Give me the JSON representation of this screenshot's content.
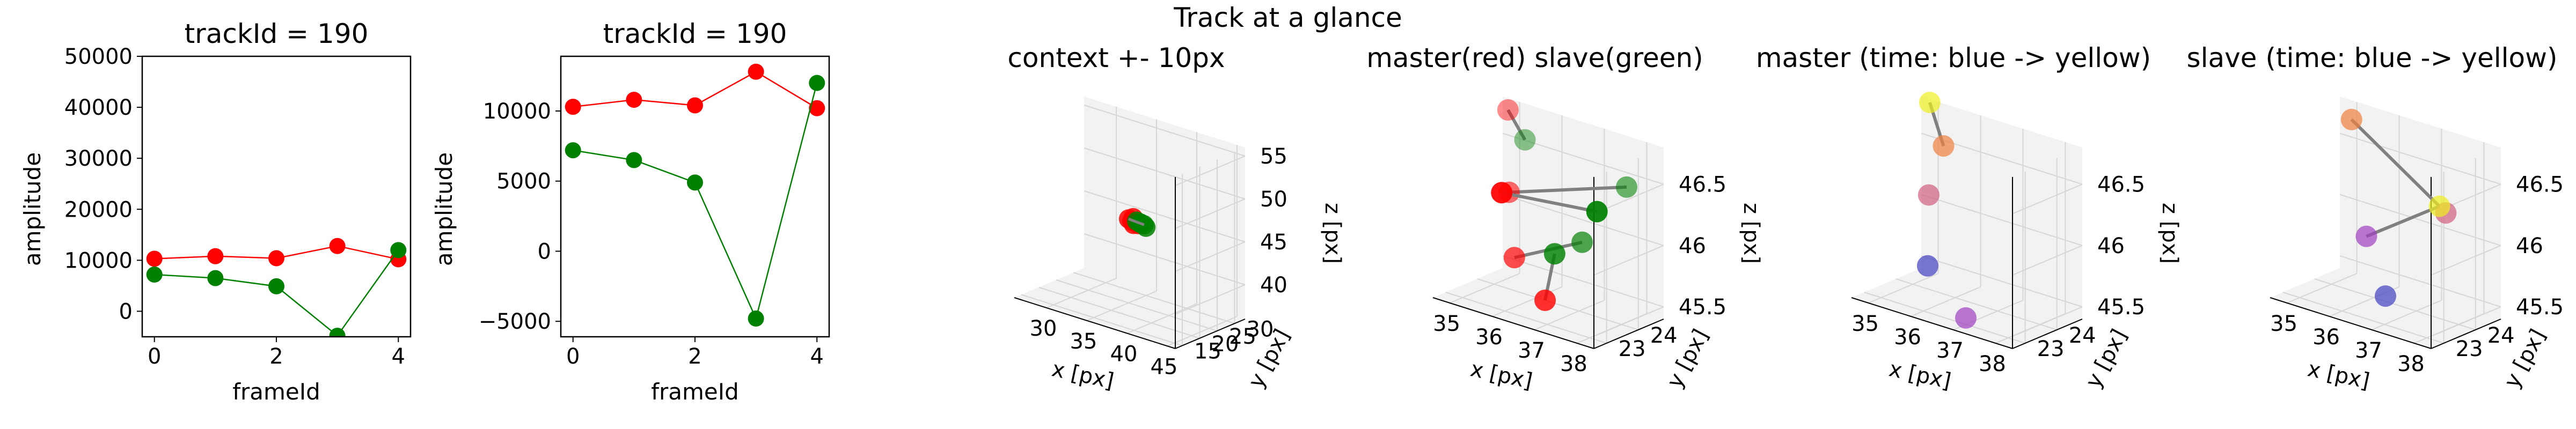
{
  "suptitle": "Track at a glance",
  "colors": {
    "master": "#ff0000",
    "slave": "#008000",
    "connector": "#808080",
    "pane": "#f2f2f2"
  },
  "chart_data": [
    {
      "type": "line",
      "title": "trackId = 190",
      "xlabel": "frameId",
      "ylabel": "amplitude",
      "xlim": [
        -0.2,
        4.2
      ],
      "ylim": [
        -5000,
        50000
      ],
      "xticks": [
        0,
        2,
        4
      ],
      "yticks": [
        0,
        10000,
        20000,
        30000,
        40000,
        50000
      ],
      "x": [
        0,
        1,
        2,
        3,
        4
      ],
      "series": [
        {
          "name": "master",
          "color": "#ff0000",
          "values": [
            10300,
            10800,
            10400,
            12800,
            10200
          ]
        },
        {
          "name": "slave",
          "color": "#008000",
          "values": [
            7200,
            6500,
            4900,
            -4800,
            12000
          ]
        }
      ]
    },
    {
      "type": "line",
      "title": "trackId = 190",
      "xlabel": "frameId",
      "ylabel": "amplitude",
      "xlim": [
        -0.2,
        4.2
      ],
      "ylim": [
        -6100,
        13900
      ],
      "xticks": [
        0,
        2,
        4
      ],
      "yticks": [
        -5000,
        0,
        5000,
        10000
      ],
      "x": [
        0,
        1,
        2,
        3,
        4
      ],
      "series": [
        {
          "name": "master",
          "color": "#ff0000",
          "values": [
            10300,
            10800,
            10400,
            12800,
            10200
          ]
        },
        {
          "name": "slave",
          "color": "#008000",
          "values": [
            7200,
            6500,
            4900,
            -4800,
            12000
          ]
        }
      ]
    },
    {
      "type": "scatter3d",
      "title": "context +- 10px",
      "xlabel": "x [px]",
      "ylabel": "y [px]",
      "zlabel": "z [px]",
      "xticks": [
        30,
        35,
        40,
        45
      ],
      "yticks": [
        15,
        20,
        25,
        30
      ],
      "zticks": [
        40,
        45,
        50,
        55
      ],
      "xlim": [
        26,
        46
      ],
      "ylim": [
        13,
        33
      ],
      "zlim": [
        36,
        56
      ],
      "master_points": [
        {
          "x": 35.6,
          "y": 23.6,
          "z": 46.2
        },
        {
          "x": 35.9,
          "y": 23.8,
          "z": 46.0
        },
        {
          "x": 36.3,
          "y": 23.4,
          "z": 45.8
        },
        {
          "x": 36.8,
          "y": 23.6,
          "z": 45.9
        },
        {
          "x": 36.0,
          "y": 24.0,
          "z": 46.4
        }
      ],
      "slave_points": [
        {
          "x": 37.0,
          "y": 23.8,
          "z": 46.1
        },
        {
          "x": 37.4,
          "y": 23.9,
          "z": 46.0
        },
        {
          "x": 37.8,
          "y": 23.5,
          "z": 45.9
        },
        {
          "x": 37.2,
          "y": 23.3,
          "z": 46.2
        },
        {
          "x": 36.7,
          "y": 23.4,
          "z": 46.3
        }
      ]
    },
    {
      "type": "scatter3d",
      "title": "master(red) slave(green)",
      "xlabel": "x [px]",
      "ylabel": "y [px]",
      "zlabel": "z [px]",
      "xticks": [
        35,
        36,
        37,
        38
      ],
      "yticks": [
        23,
        24
      ],
      "zticks": [
        45.5,
        46.0,
        46.5
      ],
      "xlim": [
        34.6,
        38.4
      ],
      "ylim": [
        22.6,
        24.8
      ],
      "zlim": [
        45.4,
        46.8
      ],
      "pairs": [
        {
          "m": {
            "x": 35.1,
            "y": 24.3,
            "z": 46.8
          },
          "s": {
            "x": 35.5,
            "y": 24.3,
            "z": 46.6
          }
        },
        {
          "m": {
            "x": 35.2,
            "y": 24.2,
            "z": 46.15
          },
          "s": {
            "x": 37.6,
            "y": 24.7,
            "z": 46.4
          }
        },
        {
          "m": {
            "x": 35.4,
            "y": 24.1,
            "z": 45.65
          },
          "s": {
            "x": 37.0,
            "y": 24.1,
            "z": 45.95
          }
        },
        {
          "m": {
            "x": 36.2,
            "y": 24.0,
            "z": 45.4
          },
          "s": {
            "x": 36.8,
            "y": 23.5,
            "z": 45.9
          }
        },
        {
          "m": {
            "x": 35.7,
            "y": 23.3,
            "z": 46.3
          },
          "s": {
            "x": 37.2,
            "y": 24.3,
            "z": 46.2
          }
        }
      ]
    },
    {
      "type": "scatter3d",
      "title": "master (time: blue -> yellow)",
      "xlabel": "x [px]",
      "ylabel": "y [px]",
      "zlabel": "z [px]",
      "xticks": [
        35,
        36,
        37,
        38
      ],
      "yticks": [
        23,
        24
      ],
      "zticks": [
        45.5,
        46.0,
        46.5
      ],
      "xlim": [
        34.6,
        38.4
      ],
      "ylim": [
        22.6,
        24.8
      ],
      "zlim": [
        45.4,
        46.8
      ],
      "points": [
        {
          "x": 35.2,
          "y": 24.2,
          "z": 45.55,
          "color": "#4040c0"
        },
        {
          "x": 36.4,
          "y": 23.8,
          "z": 45.3,
          "color": "#a040c0"
        },
        {
          "x": 35.3,
          "y": 24.1,
          "z": 46.15,
          "color": "#d06080"
        },
        {
          "x": 35.5,
          "y": 24.3,
          "z": 46.55,
          "color": "#f08040"
        },
        {
          "x": 35.1,
          "y": 24.4,
          "z": 46.85,
          "color": "#f0f020"
        }
      ]
    },
    {
      "type": "scatter3d",
      "title": "slave (time: blue -> yellow)",
      "xlabel": "x [px]",
      "ylabel": "y [px]",
      "zlabel": "z [px]",
      "xticks": [
        35,
        36,
        37,
        38
      ],
      "yticks": [
        23,
        24
      ],
      "zticks": [
        45.5,
        46.0,
        46.5
      ],
      "xlim": [
        34.6,
        38.4
      ],
      "ylim": [
        22.6,
        24.8
      ],
      "zlim": [
        45.4,
        46.8
      ],
      "points": [
        {
          "x": 36.5,
          "y": 23.7,
          "z": 45.5,
          "color": "#4040c0"
        },
        {
          "x": 35.9,
          "y": 23.9,
          "z": 45.9,
          "color": "#a040c0"
        },
        {
          "x": 37.4,
          "y": 24.4,
          "z": 46.2,
          "color": "#d06080"
        },
        {
          "x": 35.1,
          "y": 24.5,
          "z": 46.7,
          "color": "#f08040"
        },
        {
          "x": 37.1,
          "y": 24.6,
          "z": 46.2,
          "color": "#f0f020"
        }
      ]
    }
  ]
}
